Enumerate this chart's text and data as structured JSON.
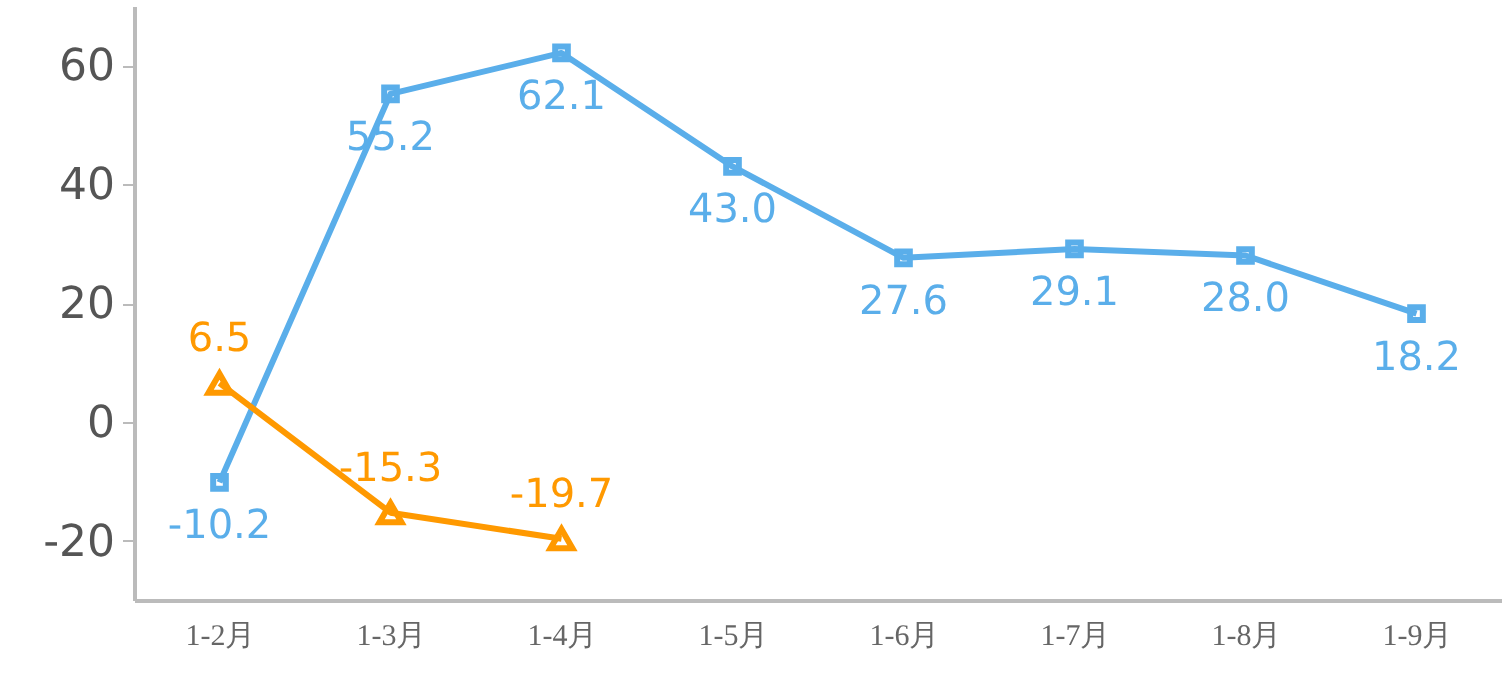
{
  "chart_data": {
    "type": "line",
    "categories": [
      "1-2月",
      "1-3月",
      "1-4月",
      "1-5月",
      "1-6月",
      "1-7月",
      "1-8月",
      "1-9月"
    ],
    "series": [
      {
        "color": "#5aaeea",
        "marker": "square",
        "values": [
          -10.2,
          55.2,
          62.1,
          43.0,
          27.6,
          29.1,
          28.0,
          18.2
        ],
        "value_labels": [
          "-10.2",
          "55.2",
          "62.1",
          "43.0",
          "27.6",
          "29.1",
          "28.0",
          "18.2"
        ]
      },
      {
        "color": "#ff9900",
        "marker": "triangle",
        "values": [
          6.5,
          -15.3,
          -19.7,
          null,
          null,
          null,
          null,
          null
        ],
        "value_labels": [
          "6.5",
          "-15.3",
          "-19.7",
          null,
          null,
          null,
          null,
          null
        ]
      }
    ],
    "ylim": [
      -30,
      70
    ],
    "yticks": [
      -20,
      0,
      20,
      40,
      60
    ],
    "grid": false
  }
}
